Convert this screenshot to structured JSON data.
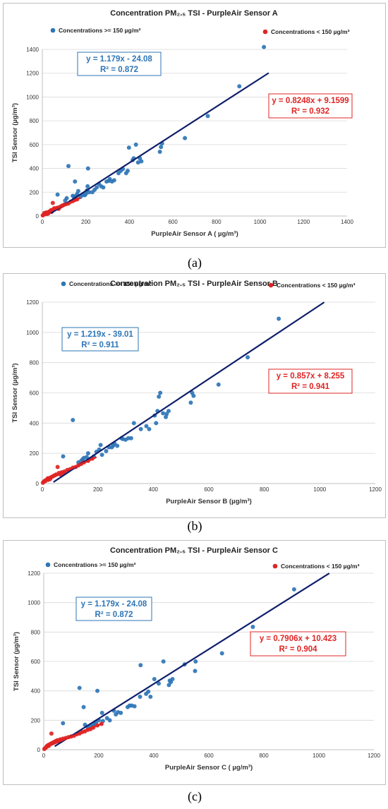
{
  "colors": {
    "high": "#2E75B6",
    "low": "#E02424",
    "line": "#0F1F6B",
    "grid": "#D9D9D9",
    "frame": "#BFBFBF"
  },
  "chart_data": [
    {
      "type": "scatter",
      "caption": "(a)",
      "title": "Concentration PM₂.₅ TSI - PurpleAir Sensor A",
      "xlabel": "PurpleAir Sensor A ( µg/m³)",
      "ylabel": "TSI Sensor (µg/m³)",
      "xlim": [
        0,
        1400
      ],
      "ylim": [
        0,
        1400
      ],
      "xticks": [
        0,
        200,
        400,
        600,
        800,
        1000,
        1200,
        1400
      ],
      "yticks": [
        0,
        200,
        400,
        600,
        800,
        1000,
        1200,
        1400
      ],
      "legend": [
        "Concentrations >= 150 µg/m³",
        "Concentrations < 150 µg/m³"
      ],
      "equations": [
        {
          "line1": "y = 1.179x - 24.08",
          "line2": "R² = 0.872",
          "color": "#2E75B6"
        },
        {
          "line1": "y = 0.8248x + 9.1599",
          "line2": "R² = 0.932",
          "color": "#E02424"
        }
      ],
      "trendlines": [
        {
          "slope": 1.179,
          "intercept": -24.08,
          "x_range": [
            40,
            1040
          ],
          "color": "#0F1F6B"
        },
        {
          "slope": 0.8248,
          "intercept": 9.1599,
          "x_range": [
            0,
            175
          ],
          "color": "#E02424"
        }
      ],
      "series": [
        {
          "name": "Concentrations >= 150 µg/m³",
          "points": [
            [
              1018,
              1420
            ],
            [
              905,
              1090
            ],
            [
              760,
              840
            ],
            [
              655,
              655
            ],
            [
              550,
              610
            ],
            [
              545,
              580
            ],
            [
              540,
              540
            ],
            [
              455,
              460
            ],
            [
              448,
              485
            ],
            [
              440,
              450
            ],
            [
              420,
              485
            ],
            [
              415,
              470
            ],
            [
              430,
              600
            ],
            [
              398,
              575
            ],
            [
              392,
              380
            ],
            [
              385,
              360
            ],
            [
              370,
              395
            ],
            [
              360,
              380
            ],
            [
              350,
              360
            ],
            [
              330,
              300
            ],
            [
              320,
              290
            ],
            [
              310,
              310
            ],
            [
              305,
              295
            ],
            [
              295,
              290
            ],
            [
              280,
              240
            ],
            [
              270,
              250
            ],
            [
              260,
              270
            ],
            [
              250,
              240
            ],
            [
              240,
              220
            ],
            [
              230,
              200
            ],
            [
              215,
              200
            ],
            [
              210,
              400
            ],
            [
              208,
              250
            ],
            [
              205,
              215
            ],
            [
              200,
              185
            ],
            [
              195,
              175
            ],
            [
              185,
              175
            ],
            [
              175,
              160
            ],
            [
              165,
              210
            ],
            [
              160,
              185
            ],
            [
              155,
              170
            ],
            [
              150,
              290
            ],
            [
              145,
              160
            ],
            [
              140,
              170
            ],
            [
              120,
              420
            ],
            [
              112,
              150
            ],
            [
              105,
              130
            ],
            [
              70,
              180
            ]
          ]
        },
        {
          "name": "Concentrations < 150 µg/m³",
          "points": [
            [
              2,
              5
            ],
            [
              5,
              10
            ],
            [
              8,
              15
            ],
            [
              10,
              25
            ],
            [
              12,
              15
            ],
            [
              15,
              20
            ],
            [
              18,
              30
            ],
            [
              20,
              25
            ],
            [
              22,
              18
            ],
            [
              25,
              30
            ],
            [
              28,
              22
            ],
            [
              30,
              35
            ],
            [
              35,
              40
            ],
            [
              40,
              50
            ],
            [
              42,
              35
            ],
            [
              45,
              45
            ],
            [
              48,
              110
            ],
            [
              50,
              55
            ],
            [
              55,
              65
            ],
            [
              60,
              60
            ],
            [
              65,
              65
            ],
            [
              70,
              70
            ],
            [
              75,
              60
            ],
            [
              80,
              75
            ],
            [
              85,
              80
            ],
            [
              90,
              85
            ],
            [
              95,
              90
            ],
            [
              100,
              95
            ],
            [
              110,
              100
            ],
            [
              120,
              105
            ],
            [
              130,
              120
            ],
            [
              140,
              125
            ],
            [
              150,
              135
            ],
            [
              160,
              140
            ]
          ]
        }
      ]
    },
    {
      "type": "scatter",
      "caption": "(b)",
      "title": "Concentration PM₂.₅ TSI - PurpleAir Sensor B",
      "xlabel": "PurpleAir Sensor B (µg/m³)",
      "ylabel": "TSI Sensor (µg/m³)",
      "xlim": [
        0,
        1200
      ],
      "ylim": [
        0,
        1200
      ],
      "xticks": [
        0,
        200,
        400,
        600,
        800,
        1000,
        1200
      ],
      "yticks": [
        0,
        200,
        400,
        600,
        800,
        1000,
        1200
      ],
      "legend": [
        "Concentrations >= 150 µg/m³",
        "Concentrations < 150 µg/m³"
      ],
      "equations": [
        {
          "line1": "y = 1.219x - 39.01",
          "line2": "R² = 0.911",
          "color": "#2E75B6"
        },
        {
          "line1": "y = 0.857x + 8.255",
          "line2": "R² = 0.941",
          "color": "#E02424"
        }
      ],
      "trendlines": [
        {
          "slope": 1.219,
          "intercept": -39.01,
          "x_range": [
            40,
            1016
          ],
          "color": "#0F1F6B"
        },
        {
          "slope": 0.857,
          "intercept": 8.255,
          "x_range": [
            0,
            195
          ],
          "color": "#E02424"
        }
      ],
      "series": [
        {
          "name": "Concentrations >= 150 µg/m³",
          "points": [
            [
              852,
              1090
            ],
            [
              740,
              835
            ],
            [
              635,
              655
            ],
            [
              545,
              580
            ],
            [
              540,
              600
            ],
            [
              535,
              535
            ],
            [
              455,
              480
            ],
            [
              448,
              460
            ],
            [
              445,
              440
            ],
            [
              435,
              465
            ],
            [
              425,
              600
            ],
            [
              420,
              575
            ],
            [
              415,
              480
            ],
            [
              410,
              400
            ],
            [
              405,
              450
            ],
            [
              385,
              360
            ],
            [
              375,
              380
            ],
            [
              355,
              360
            ],
            [
              330,
              400
            ],
            [
              320,
              300
            ],
            [
              310,
              300
            ],
            [
              300,
              290
            ],
            [
              290,
              295
            ],
            [
              285,
              300
            ],
            [
              270,
              250
            ],
            [
              260,
              265
            ],
            [
              255,
              250
            ],
            [
              250,
              240
            ],
            [
              240,
              240
            ],
            [
              230,
              215
            ],
            [
              215,
              190
            ],
            [
              210,
              255
            ],
            [
              205,
              225
            ],
            [
              195,
              210
            ],
            [
              185,
              180
            ],
            [
              175,
              165
            ],
            [
              165,
              200
            ],
            [
              160,
              175
            ],
            [
              150,
              170
            ],
            [
              145,
              160
            ],
            [
              140,
              150
            ],
            [
              130,
              140
            ],
            [
              110,
              420
            ],
            [
              75,
              180
            ]
          ]
        },
        {
          "name": "Concentrations < 150 µg/m³",
          "points": [
            [
              2,
              5
            ],
            [
              5,
              12
            ],
            [
              8,
              15
            ],
            [
              10,
              20
            ],
            [
              12,
              18
            ],
            [
              15,
              25
            ],
            [
              18,
              30
            ],
            [
              20,
              35
            ],
            [
              22,
              25
            ],
            [
              25,
              35
            ],
            [
              28,
              30
            ],
            [
              30,
              40
            ],
            [
              35,
              45
            ],
            [
              40,
              50
            ],
            [
              45,
              55
            ],
            [
              50,
              60
            ],
            [
              55,
              110
            ],
            [
              60,
              70
            ],
            [
              65,
              60
            ],
            [
              70,
              75
            ],
            [
              75,
              70
            ],
            [
              80,
              80
            ],
            [
              90,
              90
            ],
            [
              100,
              95
            ],
            [
              110,
              105
            ],
            [
              120,
              110
            ],
            [
              130,
              120
            ],
            [
              140,
              130
            ],
            [
              150,
              140
            ],
            [
              165,
              150
            ],
            [
              180,
              165
            ]
          ]
        }
      ]
    },
    {
      "type": "scatter",
      "caption": "(c)",
      "title": "Concentration PM₂.₅ TSI - PurpleAir Sensor C",
      "xlabel": "PurpleAir Sensor C ( µg/m³)",
      "ylabel": "TSI Sensor (µg/m³)",
      "xlim": [
        0,
        1200
      ],
      "ylim": [
        0,
        1200
      ],
      "xticks": [
        0,
        200,
        400,
        600,
        800,
        1000,
        1200
      ],
      "yticks": [
        0,
        200,
        400,
        600,
        800,
        1000,
        1200
      ],
      "legend": [
        "Concentrations >= 150 µg/m³",
        "Concentrations < 150 µg/m³"
      ],
      "equations": [
        {
          "line1": "y = 1.179x - 24.08",
          "line2": "R² = 0.872",
          "color": "#2E75B6"
        },
        {
          "line1": "y = 0.7906x + 10.423",
          "line2": "R² = 0.904",
          "color": "#E02424"
        }
      ],
      "trendlines": [
        {
          "slope": 1.179,
          "intercept": -24.08,
          "x_range": [
            40,
            1038
          ],
          "color": "#0F1F6B"
        },
        {
          "slope": 0.7906,
          "intercept": 10.423,
          "x_range": [
            0,
            215
          ],
          "color": "#E02424"
        }
      ],
      "series": [
        {
          "name": "Concentrations >= 150 µg/m³",
          "points": [
            [
              910,
              1090
            ],
            [
              760,
              835
            ],
            [
              648,
              655
            ],
            [
              552,
              600
            ],
            [
              550,
              535
            ],
            [
              512,
              580
            ],
            [
              468,
              480
            ],
            [
              462,
              460
            ],
            [
              458,
              470
            ],
            [
              455,
              440
            ],
            [
              435,
              600
            ],
            [
              418,
              450
            ],
            [
              402,
              480
            ],
            [
              388,
              360
            ],
            [
              380,
              395
            ],
            [
              372,
              380
            ],
            [
              352,
              575
            ],
            [
              350,
              360
            ],
            [
              330,
              295
            ],
            [
              320,
              300
            ],
            [
              312,
              300
            ],
            [
              305,
              290
            ],
            [
              280,
              250
            ],
            [
              270,
              255
            ],
            [
              262,
              240
            ],
            [
              255,
              265
            ],
            [
              240,
              200
            ],
            [
              230,
              215
            ],
            [
              215,
              195
            ],
            [
              212,
              250
            ],
            [
              200,
              200
            ],
            [
              195,
              400
            ],
            [
              190,
              185
            ],
            [
              185,
              175
            ],
            [
              180,
              165
            ],
            [
              170,
              160
            ],
            [
              160,
              150
            ],
            [
              150,
              170
            ],
            [
              145,
              290
            ],
            [
              130,
              420
            ],
            [
              70,
              180
            ]
          ]
        },
        {
          "name": "Concentrations < 150 µg/m³",
          "points": [
            [
              2,
              5
            ],
            [
              5,
              10
            ],
            [
              8,
              15
            ],
            [
              10,
              20
            ],
            [
              12,
              25
            ],
            [
              15,
              30
            ],
            [
              18,
              25
            ],
            [
              20,
              35
            ],
            [
              25,
              40
            ],
            [
              28,
              110
            ],
            [
              30,
              45
            ],
            [
              35,
              50
            ],
            [
              40,
              55
            ],
            [
              45,
              60
            ],
            [
              50,
              65
            ],
            [
              55,
              60
            ],
            [
              60,
              70
            ],
            [
              65,
              65
            ],
            [
              70,
              75
            ],
            [
              80,
              80
            ],
            [
              90,
              85
            ],
            [
              100,
              90
            ],
            [
              110,
              95
            ],
            [
              120,
              105
            ],
            [
              130,
              110
            ],
            [
              140,
              120
            ],
            [
              150,
              125
            ],
            [
              160,
              135
            ],
            [
              170,
              140
            ],
            [
              180,
              150
            ],
            [
              195,
              165
            ],
            [
              210,
              175
            ]
          ]
        }
      ]
    }
  ]
}
